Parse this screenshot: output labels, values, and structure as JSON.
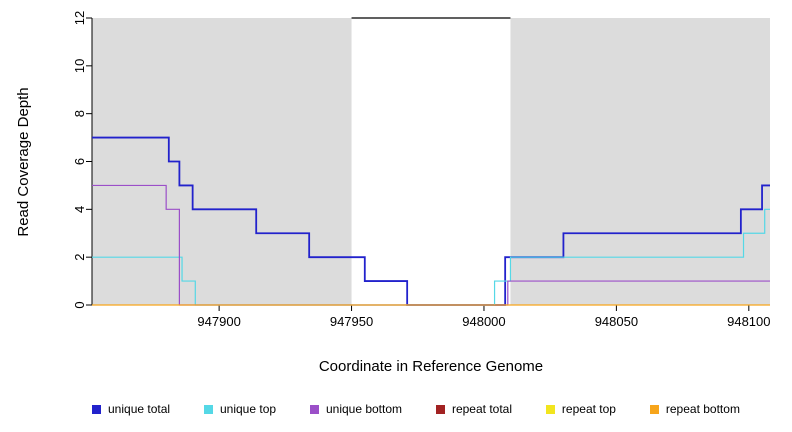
{
  "chart_data": {
    "type": "line",
    "title": "",
    "xlabel": "Coordinate in Reference Genome",
    "ylabel": "Read Coverage Depth",
    "xlim": [
      947852,
      948108
    ],
    "ylim": [
      0,
      12
    ],
    "x_ticks": [
      947900,
      947950,
      948000,
      948050,
      948100
    ],
    "y_ticks": [
      0,
      2,
      4,
      6,
      8,
      10,
      12
    ],
    "grid": false,
    "legend_position": "bottom",
    "shade_color": "#DCDCDC",
    "shaded_regions": [
      [
        947852,
        947950
      ],
      [
        948010,
        948108
      ]
    ],
    "gap_line": {
      "x": [
        947950,
        948010
      ],
      "y": 12,
      "color": "#000000"
    },
    "series": [
      {
        "name": "unique total",
        "color": "#2222CC",
        "width": 1.8,
        "steps": [
          [
            947852,
            7
          ],
          [
            947881,
            6
          ],
          [
            947885,
            5
          ],
          [
            947890,
            4
          ],
          [
            947914,
            3
          ],
          [
            947934,
            2
          ],
          [
            947955,
            1
          ],
          [
            947971,
            0
          ],
          [
            948008,
            2
          ],
          [
            948030,
            3
          ],
          [
            948097,
            4
          ],
          [
            948105,
            5
          ]
        ],
        "end": 948108
      },
      {
        "name": "unique top",
        "color": "#55D8E6",
        "width": 1.2,
        "steps": [
          [
            947852,
            2
          ],
          [
            947886,
            1
          ],
          [
            947891,
            0
          ],
          [
            948004,
            1
          ],
          [
            948010,
            2
          ],
          [
            948098,
            3
          ],
          [
            948106,
            4
          ]
        ],
        "end": 948108
      },
      {
        "name": "unique bottom",
        "color": "#9B4FC8",
        "width": 1.2,
        "steps": [
          [
            947852,
            5
          ],
          [
            947880,
            4
          ],
          [
            947885,
            0
          ],
          [
            948009,
            1
          ]
        ],
        "end": 948108
      },
      {
        "name": "repeat total",
        "color": "#A22222",
        "width": 1.0,
        "steps": [
          [
            947852,
            0
          ]
        ],
        "end": 948108
      },
      {
        "name": "repeat top",
        "color": "#F2E51E",
        "width": 1.0,
        "steps": [
          [
            947852,
            0
          ]
        ],
        "end": 948108
      },
      {
        "name": "repeat bottom",
        "color": "#F7A51B",
        "width": 1.2,
        "steps": [
          [
            947852,
            0
          ]
        ],
        "end": 948108
      }
    ]
  }
}
